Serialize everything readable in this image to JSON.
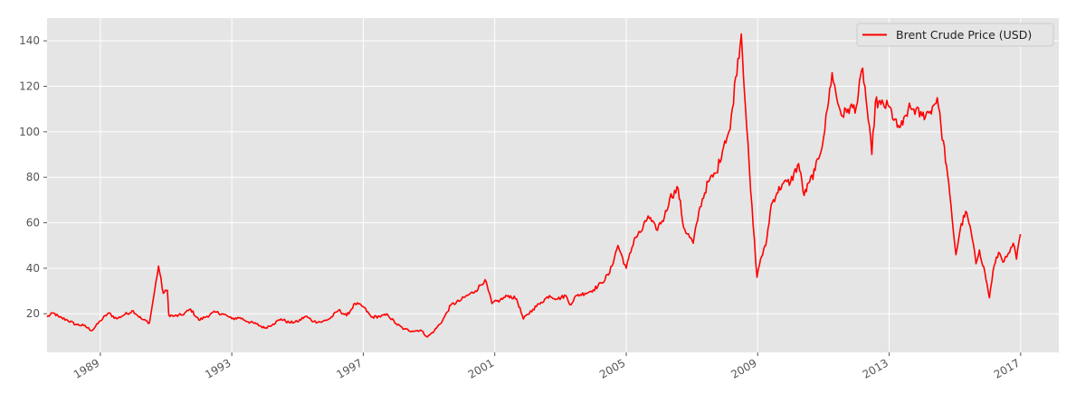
{
  "chart_data": {
    "type": "line",
    "title": "",
    "xlabel": "",
    "ylabel": "",
    "grid": true,
    "legend_position": "top-right",
    "xlim": [
      "1987-05-20",
      "2018-03-01"
    ],
    "ylim": [
      3,
      150
    ],
    "xticks": [
      {
        "date": "1989-01-01",
        "label": "1989"
      },
      {
        "date": "1993-01-01",
        "label": "1993"
      },
      {
        "date": "1997-01-01",
        "label": "1997"
      },
      {
        "date": "2001-01-01",
        "label": "2001"
      },
      {
        "date": "2005-01-01",
        "label": "2005"
      },
      {
        "date": "2009-01-01",
        "label": "2009"
      },
      {
        "date": "2013-01-01",
        "label": "2013"
      },
      {
        "date": "2017-01-01",
        "label": "2017"
      }
    ],
    "yticks": [
      20,
      40,
      60,
      80,
      100,
      120,
      140
    ],
    "series": [
      {
        "name": "Brent Crude Price (USD)",
        "color": "#ff0000",
        "x": [
          "1987-05-20",
          "1987-08-01",
          "1987-10-01",
          "1988-01-01",
          "1988-04-01",
          "1988-07-01",
          "1988-10-01",
          "1989-01-01",
          "1989-04-01",
          "1989-07-01",
          "1989-10-01",
          "1990-01-01",
          "1990-04-01",
          "1990-07-01",
          "1990-08-15",
          "1990-10-10",
          "1990-12-01",
          "1991-01-16",
          "1991-02-01",
          "1991-04-01",
          "1991-07-01",
          "1991-10-01",
          "1992-01-01",
          "1992-04-01",
          "1992-07-01",
          "1992-10-01",
          "1993-01-01",
          "1993-04-01",
          "1993-07-01",
          "1993-10-01",
          "1994-01-01",
          "1994-04-01",
          "1994-07-01",
          "1994-10-01",
          "1995-01-01",
          "1995-04-01",
          "1995-07-01",
          "1995-10-01",
          "1996-01-01",
          "1996-04-01",
          "1996-07-01",
          "1996-10-01",
          "1997-01-01",
          "1997-04-01",
          "1997-07-01",
          "1997-10-01",
          "1998-01-01",
          "1998-04-01",
          "1998-07-01",
          "1998-10-01",
          "1998-12-15",
          "1999-03-01",
          "1999-06-01",
          "1999-09-01",
          "1999-12-01",
          "2000-03-01",
          "2000-06-01",
          "2000-09-15",
          "2000-12-01",
          "2001-03-01",
          "2001-06-01",
          "2001-09-01",
          "2001-11-15",
          "2002-03-01",
          "2002-06-01",
          "2002-09-01",
          "2002-12-01",
          "2003-03-01",
          "2003-04-15",
          "2003-07-01",
          "2003-10-01",
          "2004-01-01",
          "2004-04-01",
          "2004-07-01",
          "2004-10-01",
          "2005-01-01",
          "2005-04-01",
          "2005-07-01",
          "2005-09-01",
          "2005-12-01",
          "2006-03-01",
          "2006-05-01",
          "2006-08-01",
          "2006-10-01",
          "2007-01-15",
          "2007-04-01",
          "2007-07-01",
          "2007-10-01",
          "2008-01-01",
          "2008-03-01",
          "2008-05-01",
          "2008-07-03",
          "2008-09-01",
          "2008-10-15",
          "2008-12-24",
          "2009-02-01",
          "2009-04-01",
          "2009-06-01",
          "2009-08-01",
          "2009-10-01",
          "2010-01-01",
          "2010-04-01",
          "2010-06-01",
          "2010-08-01",
          "2010-10-01",
          "2011-01-01",
          "2011-02-15",
          "2011-04-08",
          "2011-06-01",
          "2011-08-01",
          "2011-10-01",
          "2012-01-01",
          "2012-03-13",
          "2012-05-01",
          "2012-06-22",
          "2012-08-01",
          "2012-10-01",
          "2013-01-01",
          "2013-04-01",
          "2013-06-01",
          "2013-08-01",
          "2013-10-01",
          "2014-01-01",
          "2014-04-01",
          "2014-06-19",
          "2014-08-01",
          "2014-10-01",
          "2014-12-01",
          "2015-01-13",
          "2015-03-01",
          "2015-05-01",
          "2015-07-01",
          "2015-08-24",
          "2015-10-01",
          "2015-12-01",
          "2016-01-20",
          "2016-03-01",
          "2016-05-01",
          "2016-07-01",
          "2016-08-01",
          "2016-09-01",
          "2016-10-10",
          "2016-11-15",
          "2016-12-30"
        ],
        "values": [
          18.6,
          20.3,
          18.5,
          17.2,
          15.3,
          14.8,
          12.6,
          16.9,
          20.3,
          17.8,
          19.7,
          21.3,
          17.8,
          16.0,
          27.0,
          41.0,
          29.0,
          30.3,
          19.5,
          18.9,
          19.5,
          22.0,
          17.2,
          18.9,
          20.7,
          19.8,
          17.8,
          18.3,
          16.5,
          15.5,
          13.7,
          15.4,
          17.7,
          16.1,
          16.5,
          18.9,
          16.6,
          16.4,
          18.0,
          21.6,
          19.1,
          24.5,
          23.1,
          18.5,
          18.8,
          19.5,
          15.6,
          13.2,
          12.4,
          12.8,
          9.8,
          12.5,
          17.0,
          23.8,
          25.5,
          28.0,
          30.0,
          35.0,
          24.5,
          26.0,
          28.0,
          26.5,
          17.7,
          22.0,
          25.0,
          28.0,
          26.5,
          28.0,
          24.0,
          28.0,
          29.0,
          30.5,
          33.5,
          38.0,
          50.0,
          40.0,
          53.0,
          57.0,
          63.0,
          57.0,
          62.5,
          71.0,
          75.0,
          58.0,
          51.0,
          67.0,
          78.0,
          82.0,
          96.0,
          101.0,
          124.0,
          143.0,
          102.0,
          74.0,
          36.0,
          44.0,
          50.0,
          68.0,
          73.0,
          77.0,
          78.0,
          86.0,
          72.0,
          78.0,
          83.0,
          97.0,
          110.0,
          126.0,
          114.0,
          107.0,
          110.0,
          111.0,
          128.0,
          110.0,
          90.0,
          113.0,
          112.0,
          111.0,
          102.0,
          103.0,
          110.0,
          110.0,
          107.0,
          109.0,
          115.0,
          102.0,
          85.0,
          62.0,
          46.0,
          57.0,
          65.0,
          56.0,
          42.0,
          48.0,
          38.0,
          27.0,
          39.0,
          47.0,
          43.0,
          45.0,
          47.0,
          51.0,
          44.0,
          55.0
        ]
      }
    ]
  }
}
